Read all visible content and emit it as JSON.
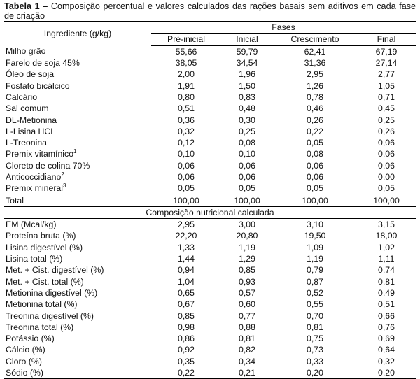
{
  "caption": {
    "bold": "Tabela 1 –",
    "text": " Composição percentual e valores calculados das rações basais sem aditivos em cada fase de criação"
  },
  "header": {
    "ingredient_label": "Ingrediente (g/kg)",
    "fases_label": "Fases",
    "phases": [
      "Pré-inicial",
      "Inicial",
      "Crescimento",
      "Final"
    ]
  },
  "ingredients": [
    {
      "name": "Milho grão",
      "sup": "",
      "values": [
        "55,66",
        "59,79",
        "62,41",
        "67,19"
      ]
    },
    {
      "name": "Farelo de soja 45%",
      "sup": "",
      "values": [
        "38,05",
        "34,54",
        "31,36",
        "27,14"
      ]
    },
    {
      "name": "Óleo de soja",
      "sup": "",
      "values": [
        "2,00",
        "1,96",
        "2,95",
        "2,77"
      ]
    },
    {
      "name": "Fosfato bicálcico",
      "sup": "",
      "values": [
        "1,91",
        "1,50",
        "1,26",
        "1,05"
      ]
    },
    {
      "name": "Calcário",
      "sup": "",
      "values": [
        "0,80",
        "0,83",
        "0,78",
        "0,71"
      ]
    },
    {
      "name": "Sal comum",
      "sup": "",
      "values": [
        "0,51",
        "0,48",
        "0,46",
        "0,45"
      ]
    },
    {
      "name": "DL-Metionina",
      "sup": "",
      "values": [
        "0,36",
        "0,30",
        "0,26",
        "0,25"
      ]
    },
    {
      "name": "L-Lisina HCL",
      "sup": "",
      "values": [
        "0,32",
        "0,25",
        "0,22",
        "0,26"
      ]
    },
    {
      "name": "L-Treonina",
      "sup": "",
      "values": [
        "0,12",
        "0,08",
        "0,05",
        "0,06"
      ]
    },
    {
      "name": "Premix vitamínico",
      "sup": "1",
      "values": [
        "0,10",
        "0,10",
        "0,08",
        "0,06"
      ]
    },
    {
      "name": "Cloreto de colina 70%",
      "sup": "",
      "values": [
        "0,06",
        "0,06",
        "0,06",
        "0,06"
      ]
    },
    {
      "name": "Anticoccidiano",
      "sup": "2",
      "values": [
        "0,06",
        "0,06",
        "0,06",
        "0,00"
      ]
    },
    {
      "name": "Premix mineral",
      "sup": "3",
      "values": [
        "0,05",
        "0,05",
        "0,05",
        "0,05"
      ]
    }
  ],
  "total": {
    "name": "Total",
    "values": [
      "100,00",
      "100,00",
      "100,00",
      "100,00"
    ]
  },
  "nutrition_title": "Composição nutricional calculada",
  "nutrition": [
    {
      "name": "EM (Mcal/kg)",
      "values": [
        "2,95",
        "3,00",
        "3,10",
        "3,15"
      ]
    },
    {
      "name": "Proteína bruta (%)",
      "values": [
        "22,20",
        "20,80",
        "19,50",
        "18,00"
      ]
    },
    {
      "name": "Lisina digestível (%)",
      "values": [
        "1,33",
        "1,19",
        "1,09",
        "1,02"
      ]
    },
    {
      "name": "Lisina total (%)",
      "values": [
        "1,44",
        "1,29",
        "1,19",
        "1,11"
      ]
    },
    {
      "name": "Met. + Cist. digestível (%)",
      "values": [
        "0,94",
        "0,85",
        "0,79",
        "0,74"
      ]
    },
    {
      "name": "Met. + Cist. total (%)",
      "values": [
        "1,04",
        "0,93",
        "0,87",
        "0,81"
      ]
    },
    {
      "name": "Metionina digestível (%)",
      "values": [
        "0,65",
        "0,57",
        "0,52",
        "0,49"
      ]
    },
    {
      "name": "Metionina total (%)",
      "values": [
        "0,67",
        "0,60",
        "0,55",
        "0,51"
      ]
    },
    {
      "name": "Treonina digestível (%)",
      "values": [
        "0,85",
        "0,77",
        "0,70",
        "0,66"
      ]
    },
    {
      "name": "Treonina total (%)",
      "values": [
        "0,98",
        "0,88",
        "0,81",
        "0,76"
      ]
    },
    {
      "name": "Potássio (%)",
      "values": [
        "0,86",
        "0,81",
        "0,75",
        "0,69"
      ]
    },
    {
      "name": "Cálcio (%)",
      "values": [
        "0,92",
        "0,82",
        "0,73",
        "0,64"
      ]
    },
    {
      "name": "Cloro (%)",
      "values": [
        "0,35",
        "0,34",
        "0,33",
        "0,32"
      ]
    },
    {
      "name": "Sódio (%)",
      "values": [
        "0,22",
        "0,21",
        "0,20",
        "0,20"
      ]
    }
  ]
}
